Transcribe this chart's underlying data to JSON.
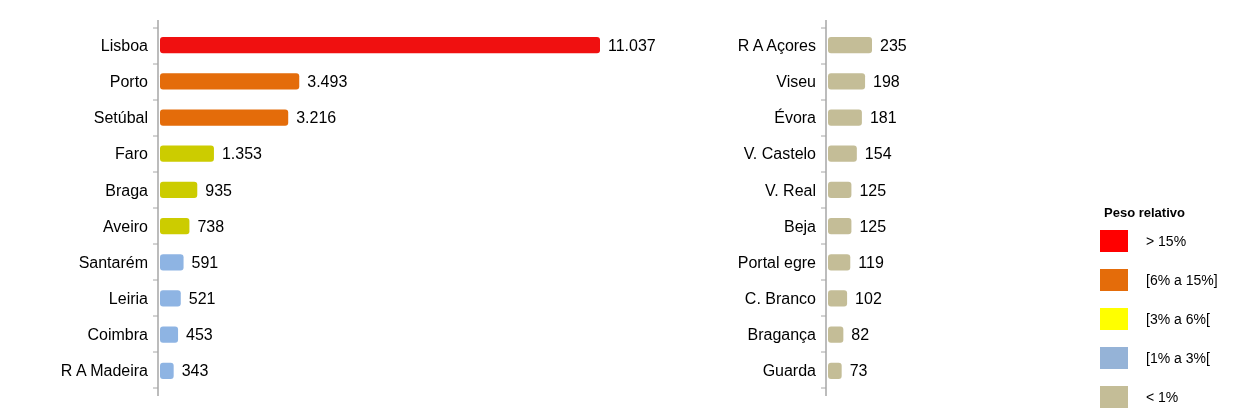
{
  "chart_data": [
    {
      "type": "bar",
      "orientation": "horizontal",
      "categories": [
        "Lisboa",
        "Porto",
        "Setúbal",
        "Faro",
        "Braga",
        "Aveiro",
        "Santarém",
        "Leiria",
        "Coimbra",
        "R A Madeira"
      ],
      "values": [
        11037,
        3493,
        3216,
        1353,
        935,
        738,
        591,
        521,
        453,
        343
      ],
      "value_labels": [
        "11.037",
        "3.493",
        "3.216",
        "1.353",
        "935",
        "738",
        "591",
        "521",
        "453",
        "343"
      ],
      "colors": [
        "#f01010",
        "#e46c0a",
        "#e46c0a",
        "#cccc00",
        "#cccc00",
        "#cccc00",
        "#8eb4e3",
        "#8eb4e3",
        "#8eb4e3",
        "#8eb4e3"
      ]
    },
    {
      "type": "bar",
      "orientation": "horizontal",
      "categories": [
        "R A Açores",
        "Viseu",
        "Évora",
        "V. Castelo",
        "V. Real",
        "Beja",
        "Portal egre",
        "C. Branco",
        "Bragança",
        "Guarda"
      ],
      "values": [
        235,
        198,
        181,
        154,
        125,
        125,
        119,
        102,
        82,
        73
      ],
      "value_labels": [
        "235",
        "198",
        "181",
        "154",
        "125",
        "125",
        "119",
        "102",
        "82",
        "73"
      ],
      "colors": [
        "#c4bd97",
        "#c4bd97",
        "#c4bd97",
        "#c4bd97",
        "#c4bd97",
        "#c4bd97",
        "#c4bd97",
        "#c4bd97",
        "#c4bd97",
        "#c4bd97"
      ]
    },
    {
      "type": "other",
      "legend_title": "Peso relativo",
      "categories": [
        "> 15%",
        "[6% a 15%]",
        "[3% a 6%[",
        "[1% a 3%[",
        "< 1%"
      ],
      "colors": [
        "#ff0000",
        "#e46c0a",
        "#ffff00",
        "#95b3d7",
        "#c4bd97"
      ]
    }
  ]
}
